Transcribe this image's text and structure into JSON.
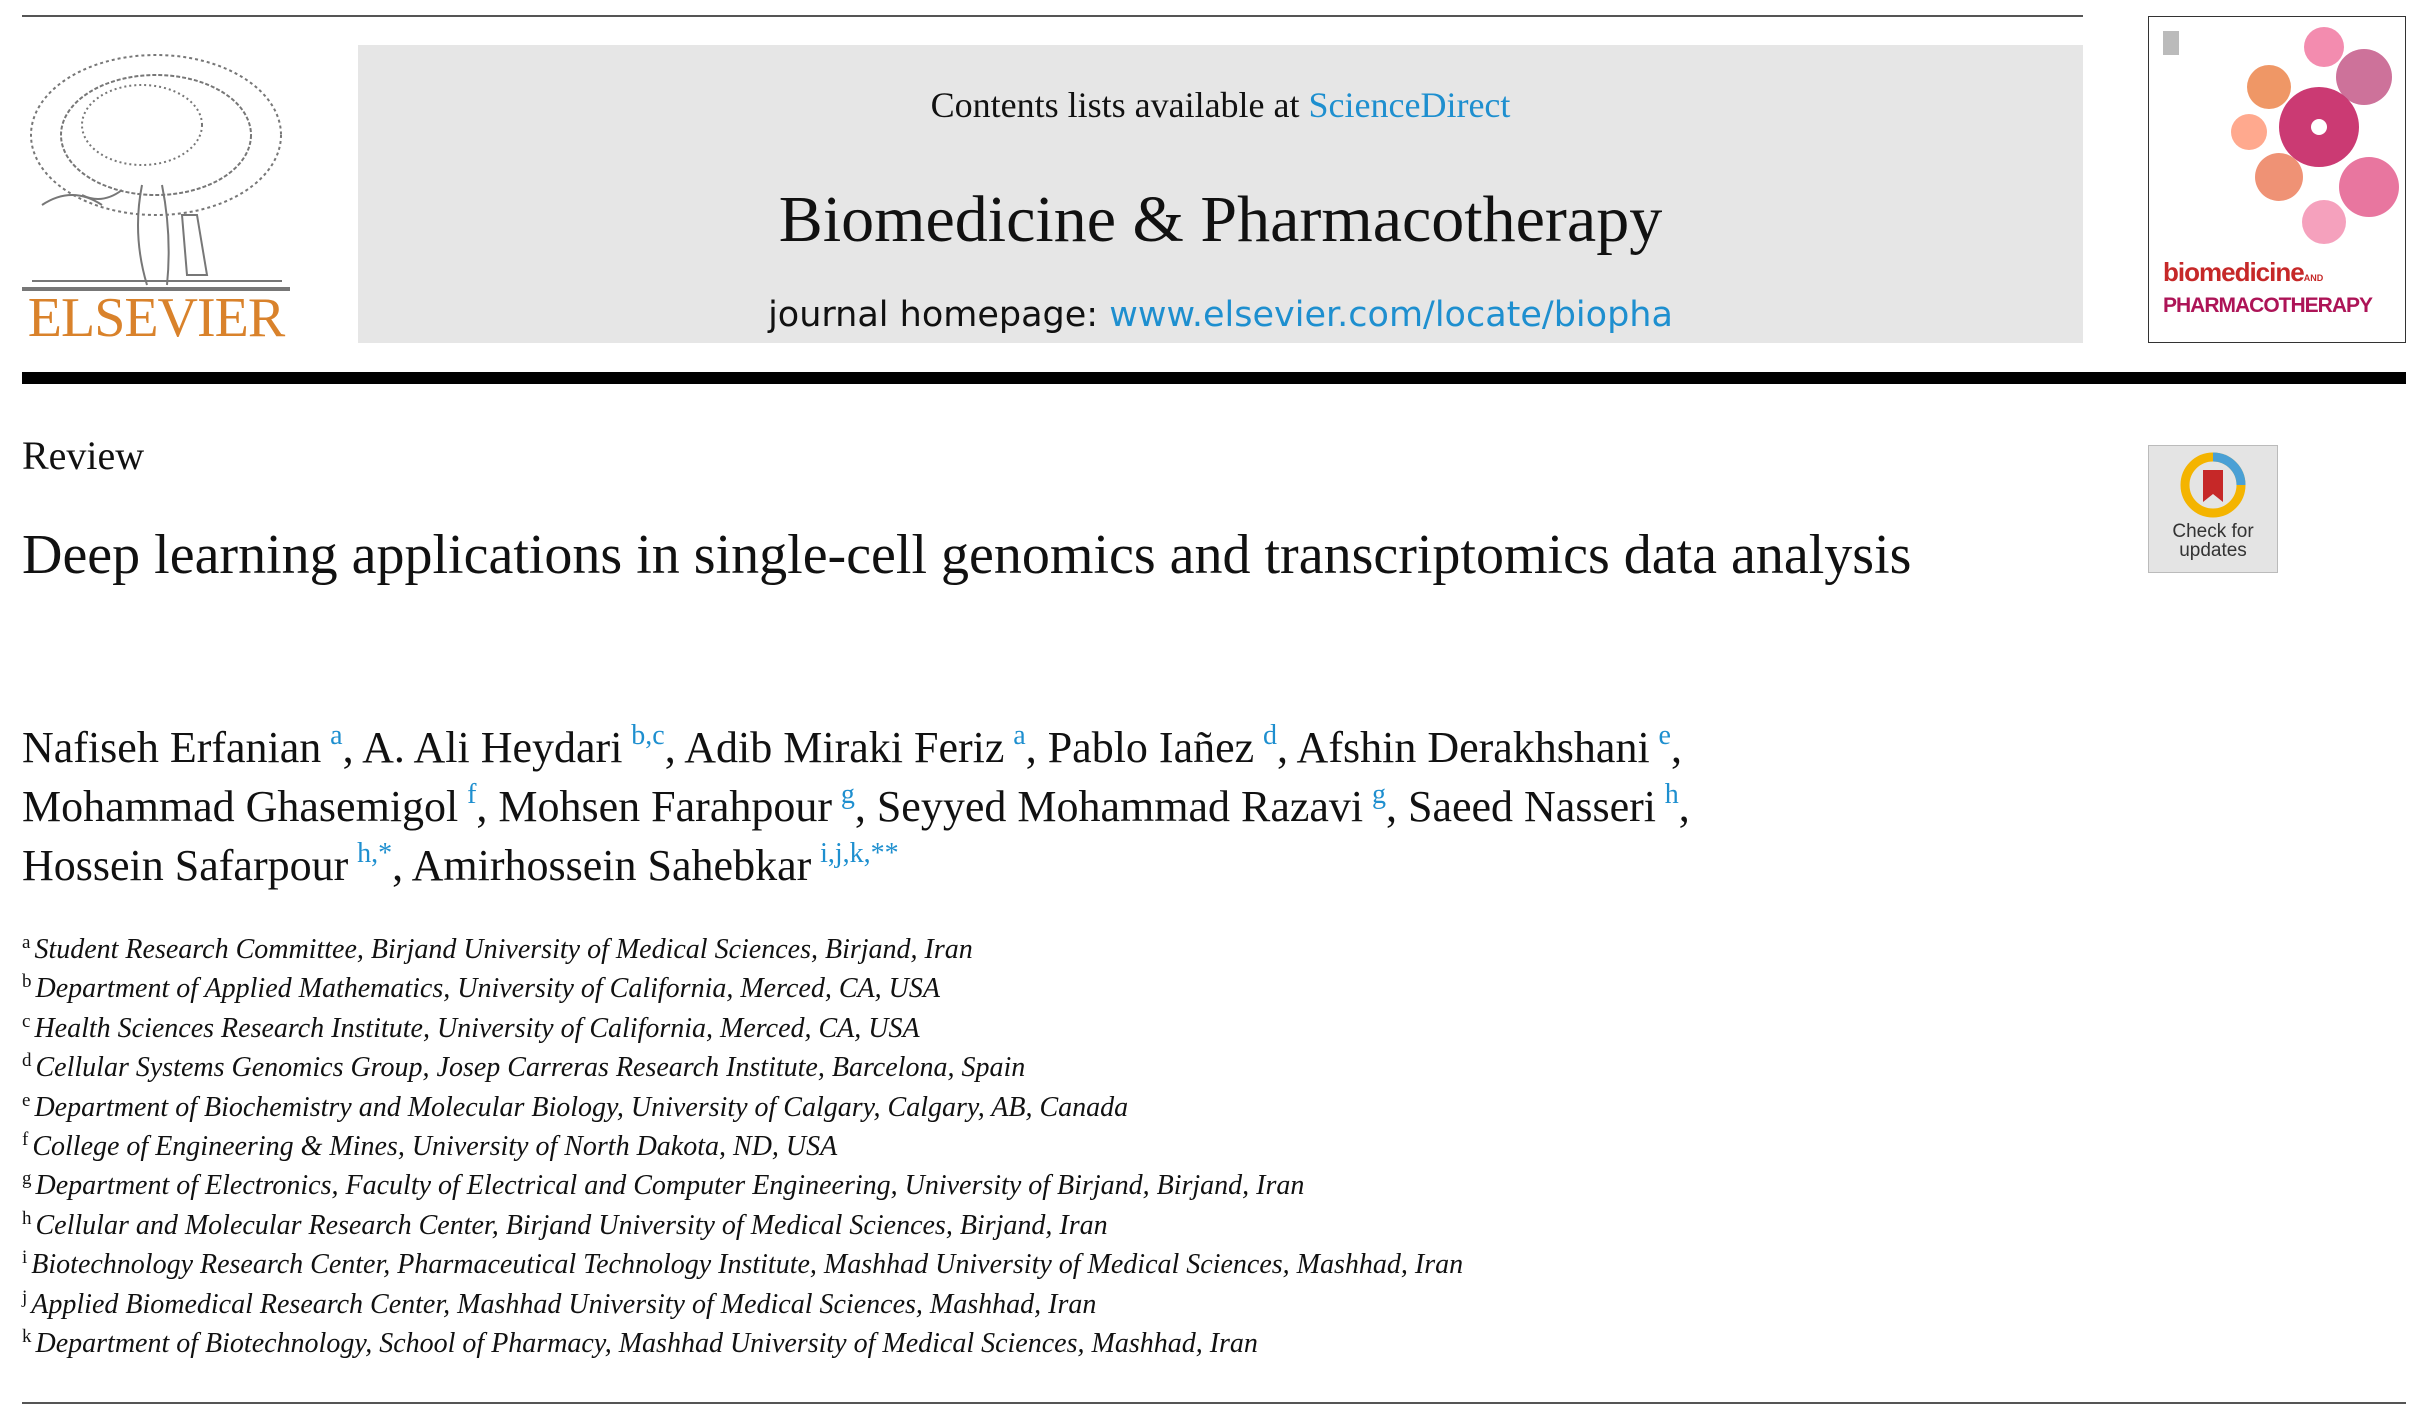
{
  "header": {
    "publisher": "ELSEVIER",
    "contents_prefix": "Contents lists available at ",
    "contents_link": "ScienceDirect",
    "journal_title": "Biomedicine & Pharmacotherapy",
    "homepage_prefix": "journal homepage: ",
    "homepage_link": "www.elsevier.com/locate/biopha",
    "cover_line1": "biomedicine",
    "cover_and": "AND",
    "cover_line2": "PHARMACOTHERAPY"
  },
  "article": {
    "type": "Review",
    "title": "Deep learning applications in single-cell genomics and transcriptomics data analysis",
    "check_updates": [
      "Check for",
      "updates"
    ],
    "authors": [
      {
        "name": "Nafiseh Erfanian",
        "sup": "a",
        "sep": ", "
      },
      {
        "name": "A. Ali Heydari",
        "sup": "b,c",
        "sep": ", "
      },
      {
        "name": "Adib Miraki Feriz",
        "sup": "a",
        "sep": ", "
      },
      {
        "name": "Pablo Iañez",
        "sup": "d",
        "sep": ", "
      },
      {
        "name": "Afshin Derakhshani",
        "sup": "e",
        "sep": ", "
      },
      {
        "name": "Mohammad Ghasemigol",
        "sup": "f",
        "sep": ", "
      },
      {
        "name": "Mohsen Farahpour",
        "sup": "g",
        "sep": ", "
      },
      {
        "name": "Seyyed Mohammad Razavi",
        "sup": "g",
        "sep": ", "
      },
      {
        "name": "Saeed Nasseri",
        "sup": "h",
        "sep": ", "
      },
      {
        "name": "Hossein Safarpour",
        "sup": "h,*",
        "sep": ", "
      },
      {
        "name": "Amirhossein Sahebkar",
        "sup": "i,j,k,**",
        "sep": ""
      }
    ],
    "affiliations": [
      {
        "key": "a",
        "text": "Student Research Committee, Birjand University of Medical Sciences, Birjand, Iran"
      },
      {
        "key": "b",
        "text": "Department of Applied Mathematics, University of California, Merced, CA, USA"
      },
      {
        "key": "c",
        "text": "Health Sciences Research Institute, University of California, Merced, CA, USA"
      },
      {
        "key": "d",
        "text": "Cellular Systems Genomics Group, Josep Carreras Research Institute, Barcelona, Spain"
      },
      {
        "key": "e",
        "text": "Department of Biochemistry and Molecular Biology, University of Calgary, Calgary, AB, Canada"
      },
      {
        "key": "f",
        "text": "College of Engineering & Mines, University of North Dakota, ND, USA"
      },
      {
        "key": "g",
        "text": "Department of Electronics, Faculty of Electrical and Computer Engineering, University of Birjand, Birjand, Iran"
      },
      {
        "key": "h",
        "text": "Cellular and Molecular Research Center, Birjand University of Medical Sciences, Birjand, Iran"
      },
      {
        "key": "i",
        "text": "Biotechnology Research Center, Pharmaceutical Technology Institute, Mashhad University of Medical Sciences, Mashhad, Iran"
      },
      {
        "key": "j",
        "text": "Applied Biomedical Research Center, Mashhad University of Medical Sciences, Mashhad, Iran"
      },
      {
        "key": "k",
        "text": "Department of Biotechnology, School of Pharmacy, Mashhad University of Medical Sciences, Mashhad, Iran"
      }
    ]
  },
  "colors": {
    "link": "#1e8fcf",
    "elsevier_orange": "#d9822b",
    "banner": "#e6e6e6"
  }
}
